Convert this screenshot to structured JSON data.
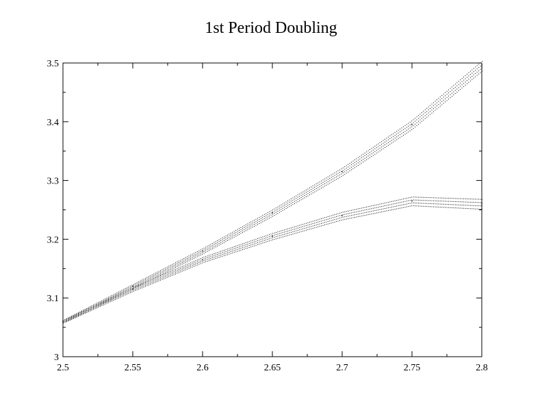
{
  "chart_data": {
    "type": "scatter",
    "title": "1st Period Doubling",
    "xlabel": "",
    "ylabel": "",
    "xlim": [
      2.5,
      2.8
    ],
    "ylim": [
      3.0,
      3.5
    ],
    "x_ticks": [
      "2.5",
      "2.55",
      "2.6",
      "2.65",
      "2.7",
      "2.75",
      "2.8"
    ],
    "y_ticks": [
      "3",
      "3.1",
      "3.2",
      "3.3",
      "3.4",
      "3.5"
    ],
    "grid": false,
    "legend": "none",
    "point_color": "#000000",
    "series": [
      {
        "branch": "upper",
        "x": [
          2.5,
          2.55,
          2.6,
          2.65,
          2.7,
          2.75,
          2.8
        ],
        "y": [
          3.06,
          3.12,
          3.18,
          3.245,
          3.315,
          3.395,
          3.495
        ]
      },
      {
        "branch": "lower",
        "x": [
          2.5,
          2.55,
          2.6,
          2.65,
          2.7,
          2.75,
          2.8
        ],
        "y": [
          3.06,
          3.115,
          3.165,
          3.205,
          3.24,
          3.265,
          3.26
        ]
      }
    ]
  }
}
